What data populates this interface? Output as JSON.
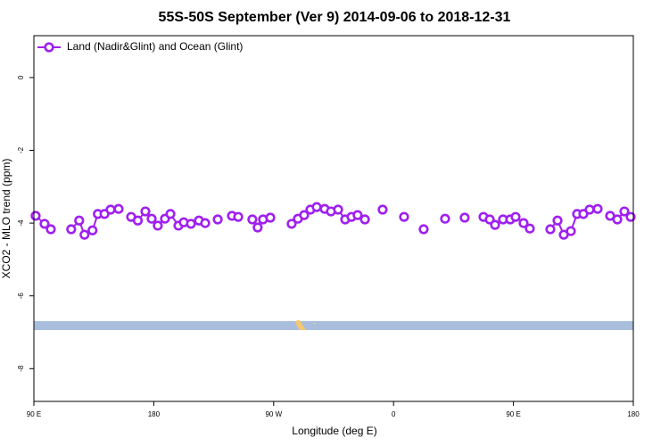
{
  "chart_data": {
    "type": "line",
    "title": "55S-50S September (Ver 9)   2014-09-06 to 2018-12-31",
    "x_label": "Longitude (deg E)",
    "y_label": "XCO2 - MLO trend (ppm)",
    "xlim": [
      90,
      540
    ],
    "ylim": [
      -8.9,
      1.15
    ],
    "xticks": [
      {
        "value": 90,
        "label": "90 E"
      },
      {
        "value": 180,
        "label": "180"
      },
      {
        "value": 270,
        "label": "90 W"
      },
      {
        "value": 360,
        "label": "0"
      },
      {
        "value": 450,
        "label": "90 E"
      },
      {
        "value": 540,
        "label": "180"
      }
    ],
    "yticks": [
      0,
      -2,
      -4,
      -6,
      -8
    ],
    "legend": "top-left",
    "series": [
      {
        "name": "Land (Nadir&Glint) and Ocean (Glint)",
        "color": "#a020f0",
        "x": [
          91.3,
          98,
          102.7,
          null,
          118,
          124,
          128,
          134,
          138,
          143,
          147.6,
          153.6,
          null,
          163,
          168,
          173.7,
          178.4,
          183,
          188.4,
          192.5,
          198.5,
          202.5,
          207.9,
          213.9,
          218.6,
          null,
          228,
          null,
          238.7,
          243.4,
          null,
          254,
          258,
          262,
          267.5,
          null,
          283.5,
          288.2,
          292.9,
          297.6,
          302.3,
          308.3,
          313,
          318.4,
          323.7,
          328.4,
          333,
          338.5,
          null,
          351.8,
          null,
          367.9,
          null,
          382.6,
          null,
          398.7,
          null,
          413.4,
          null,
          427.5,
          432.2,
          436.2,
          442.2,
          447.6,
          451.6,
          457.6,
          462.3,
          null,
          477.7,
          483.1,
          487.8,
          493.1,
          497.8,
          502.5,
          507.2,
          513.2,
          null,
          522.6,
          528,
          533.3,
          538
        ],
        "values": [
          -3.8,
          -4.02,
          -4.17,
          null,
          -4.17,
          -3.93,
          -4.32,
          -4.2,
          -3.75,
          -3.75,
          -3.63,
          -3.61,
          null,
          -3.83,
          -3.93,
          -3.68,
          -3.88,
          -4.07,
          -3.88,
          -3.75,
          -4.07,
          -3.98,
          -4.02,
          -3.93,
          -4.0,
          null,
          -3.9,
          null,
          -3.8,
          -3.83,
          null,
          -3.9,
          -4.12,
          -3.9,
          -3.85,
          null,
          -4.02,
          -3.88,
          -3.78,
          -3.63,
          -3.56,
          -3.61,
          -3.68,
          -3.63,
          -3.9,
          -3.83,
          -3.78,
          -3.9,
          null,
          -3.63,
          null,
          -3.83,
          null,
          -4.17,
          null,
          -3.88,
          null,
          -3.85,
          null,
          -3.83,
          -3.9,
          -4.05,
          -3.9,
          -3.9,
          -3.83,
          -4.0,
          -4.15,
          null,
          -4.17,
          -3.93,
          -4.32,
          -4.22,
          -3.75,
          -3.75,
          -3.63,
          -3.61,
          null,
          -3.8,
          -3.9,
          -3.68,
          -3.83
        ]
      }
    ]
  }
}
